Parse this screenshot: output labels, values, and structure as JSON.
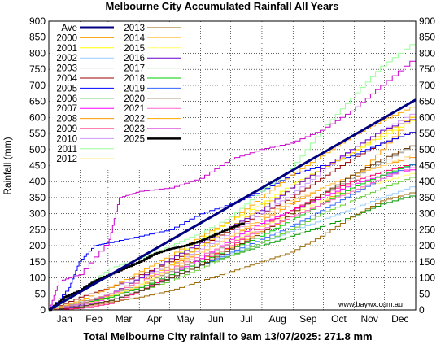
{
  "chart_data": {
    "type": "line",
    "title": "Melbourne City Accumulated Rainfall All Years",
    "xlabel": "Total Melbourne City rainfall to 9am 13/07/2025: 271.8 mm",
    "ylabel": "Rainfall (mm)",
    "source": "www.baywx.com.au",
    "ylim": [
      0,
      900
    ],
    "yticks": [
      "0",
      "50",
      "100",
      "150",
      "200",
      "250",
      "300",
      "350",
      "400",
      "450",
      "500",
      "550",
      "600",
      "650",
      "700",
      "750",
      "800",
      "850",
      "900"
    ],
    "xlim": [
      0,
      365
    ],
    "months": [
      "Jan",
      "Feb",
      "Mar",
      "Apr",
      "May",
      "Jun",
      "Jul",
      "Aug",
      "Sep",
      "Oct",
      "Nov",
      "Dec"
    ],
    "grid": true,
    "legend_position": "top-left",
    "legend_columns": [
      [
        "Ave",
        "2000",
        "2001",
        "2002",
        "2003",
        "2004",
        "2005",
        "2006",
        "2007",
        "2008",
        "2009",
        "2010",
        "2011",
        "2012"
      ],
      [
        "2013",
        "2014",
        "2015",
        "2016",
        "2017",
        "2018",
        "2019",
        "2020",
        "2021",
        "2022",
        "2023",
        "2025"
      ]
    ],
    "series": [
      {
        "name": "2000",
        "color": "#ff9900",
        "width": 1,
        "x": [
          0,
          30,
          60,
          90,
          120,
          150,
          180,
          210,
          240,
          270,
          300,
          330,
          365
        ],
        "y": [
          0,
          20,
          45,
          75,
          125,
          160,
          195,
          245,
          290,
          330,
          400,
          500,
          620
        ]
      },
      {
        "name": "2001",
        "color": "#ffff00",
        "width": 1,
        "x": [
          0,
          30,
          60,
          90,
          120,
          150,
          180,
          210,
          240,
          270,
          300,
          330,
          365
        ],
        "y": [
          0,
          15,
          50,
          100,
          160,
          220,
          280,
          330,
          390,
          440,
          490,
          540,
          600
        ]
      },
      {
        "name": "2002",
        "color": "#99ccff",
        "width": 1,
        "x": [
          0,
          30,
          60,
          90,
          120,
          150,
          180,
          210,
          240,
          270,
          300,
          330,
          365
        ],
        "y": [
          0,
          10,
          30,
          60,
          100,
          140,
          175,
          210,
          245,
          280,
          315,
          350,
          390
        ]
      },
      {
        "name": "2003",
        "color": "#999999",
        "width": 1,
        "x": [
          0,
          30,
          60,
          90,
          120,
          150,
          180,
          210,
          240,
          270,
          300,
          330,
          365
        ],
        "y": [
          0,
          25,
          50,
          80,
          120,
          160,
          210,
          260,
          310,
          360,
          410,
          460,
          520
        ]
      },
      {
        "name": "2004",
        "color": "#990000",
        "width": 1,
        "x": [
          0,
          30,
          60,
          90,
          120,
          150,
          180,
          210,
          240,
          270,
          300,
          330,
          365
        ],
        "y": [
          0,
          40,
          70,
          110,
          150,
          200,
          250,
          300,
          350,
          410,
          470,
          520,
          560
        ]
      },
      {
        "name": "2005",
        "color": "#0000ff",
        "width": 1,
        "x": [
          0,
          20,
          30,
          45,
          60,
          90,
          120,
          150,
          180,
          210,
          240,
          270,
          300,
          330,
          365
        ],
        "y": [
          0,
          70,
          150,
          200,
          210,
          230,
          250,
          300,
          330,
          370,
          420,
          450,
          480,
          520,
          560
        ]
      },
      {
        "name": "2006",
        "color": "#009900",
        "width": 1,
        "x": [
          0,
          30,
          60,
          90,
          120,
          150,
          180,
          210,
          240,
          270,
          300,
          330,
          365
        ],
        "y": [
          0,
          20,
          40,
          70,
          100,
          140,
          170,
          200,
          230,
          260,
          290,
          330,
          360
        ]
      },
      {
        "name": "2007",
        "color": "#ff00ff",
        "width": 1,
        "x": [
          0,
          30,
          60,
          90,
          120,
          150,
          180,
          210,
          240,
          270,
          300,
          330,
          365
        ],
        "y": [
          0,
          10,
          40,
          70,
          110,
          160,
          220,
          270,
          310,
          350,
          390,
          420,
          440
        ]
      },
      {
        "name": "2008",
        "color": "#ff9900",
        "width": 1,
        "x": [
          0,
          30,
          60,
          90,
          120,
          150,
          180,
          210,
          240,
          270,
          300,
          330,
          365
        ],
        "y": [
          0,
          20,
          50,
          90,
          140,
          180,
          230,
          280,
          330,
          380,
          420,
          450,
          480
        ]
      },
      {
        "name": "2009",
        "color": "#ff0066",
        "width": 1,
        "x": [
          0,
          30,
          60,
          90,
          120,
          150,
          180,
          210,
          240,
          270,
          300,
          330,
          365
        ],
        "y": [
          0,
          5,
          20,
          60,
          110,
          150,
          200,
          260,
          310,
          360,
          400,
          430,
          460
        ]
      },
      {
        "name": "2010",
        "color": "#cc99ff",
        "width": 1,
        "x": [
          0,
          30,
          60,
          90,
          120,
          150,
          180,
          210,
          240,
          270,
          300,
          330,
          365
        ],
        "y": [
          0,
          30,
          70,
          100,
          140,
          190,
          240,
          300,
          360,
          430,
          500,
          560,
          620
        ]
      },
      {
        "name": "2011",
        "color": "#99ff99",
        "width": 1,
        "x": [
          0,
          30,
          60,
          90,
          120,
          150,
          180,
          210,
          240,
          270,
          300,
          330,
          365
        ],
        "y": [
          0,
          60,
          130,
          160,
          200,
          240,
          290,
          370,
          440,
          560,
          660,
          760,
          840
        ]
      },
      {
        "name": "2012",
        "color": "#ffcc00",
        "width": 1,
        "x": [
          0,
          30,
          60,
          90,
          120,
          150,
          180,
          210,
          240,
          270,
          300,
          330,
          365
        ],
        "y": [
          0,
          20,
          50,
          90,
          140,
          200,
          260,
          320,
          380,
          440,
          490,
          550,
          610
        ]
      },
      {
        "name": "2013",
        "color": "#996600",
        "width": 1,
        "x": [
          0,
          30,
          60,
          90,
          120,
          150,
          180,
          210,
          240,
          270,
          300,
          330,
          365
        ],
        "y": [
          0,
          10,
          25,
          40,
          60,
          90,
          120,
          150,
          180,
          230,
          290,
          340,
          370
        ]
      },
      {
        "name": "2014",
        "color": "#ffcc66",
        "width": 1,
        "x": [
          0,
          30,
          60,
          90,
          120,
          150,
          180,
          210,
          240,
          270,
          300,
          330,
          365
        ],
        "y": [
          0,
          15,
          40,
          80,
          130,
          180,
          230,
          290,
          340,
          380,
          420,
          450,
          490
        ]
      },
      {
        "name": "2015",
        "color": "#ffff66",
        "width": 1,
        "x": [
          0,
          30,
          60,
          90,
          120,
          150,
          180,
          210,
          240,
          270,
          300,
          330,
          365
        ],
        "y": [
          0,
          20,
          40,
          80,
          130,
          170,
          210,
          260,
          300,
          340,
          370,
          400,
          430
        ]
      },
      {
        "name": "2016",
        "color": "#6600cc",
        "width": 1,
        "x": [
          0,
          30,
          60,
          90,
          120,
          150,
          180,
          210,
          240,
          270,
          300,
          330,
          365
        ],
        "y": [
          0,
          15,
          50,
          100,
          160,
          210,
          260,
          310,
          380,
          440,
          500,
          560,
          600
        ]
      },
      {
        "name": "2017",
        "color": "#66cc33",
        "width": 1,
        "x": [
          0,
          30,
          60,
          90,
          120,
          150,
          180,
          210,
          240,
          270,
          300,
          330,
          365
        ],
        "y": [
          0,
          10,
          30,
          60,
          90,
          130,
          170,
          210,
          250,
          300,
          340,
          380,
          420
        ]
      },
      {
        "name": "2018",
        "color": "#00cc00",
        "width": 1,
        "x": [
          0,
          30,
          60,
          90,
          120,
          150,
          180,
          210,
          240,
          270,
          300,
          330,
          365
        ],
        "y": [
          0,
          20,
          40,
          70,
          110,
          150,
          190,
          230,
          280,
          330,
          380,
          420,
          460
        ]
      },
      {
        "name": "2019",
        "color": "#3366ff",
        "width": 1,
        "x": [
          0,
          30,
          60,
          90,
          120,
          150,
          180,
          210,
          240,
          270,
          300,
          330,
          365
        ],
        "y": [
          0,
          10,
          30,
          60,
          100,
          140,
          180,
          220,
          260,
          310,
          360,
          410,
          460
        ]
      },
      {
        "name": "2020",
        "color": "#663300",
        "width": 1,
        "x": [
          0,
          30,
          60,
          90,
          120,
          150,
          180,
          210,
          240,
          270,
          300,
          330,
          365
        ],
        "y": [
          0,
          10,
          30,
          60,
          100,
          140,
          190,
          240,
          300,
          360,
          420,
          470,
          520
        ]
      },
      {
        "name": "2021",
        "color": "#ff66cc",
        "width": 1,
        "x": [
          0,
          30,
          60,
          90,
          120,
          150,
          180,
          210,
          240,
          270,
          300,
          330,
          365
        ],
        "y": [
          0,
          20,
          50,
          90,
          130,
          170,
          210,
          250,
          290,
          330,
          370,
          410,
          450
        ]
      },
      {
        "name": "2022",
        "color": "#ffaa00",
        "width": 1,
        "x": [
          0,
          30,
          60,
          90,
          120,
          150,
          180,
          210,
          240,
          270,
          300,
          330,
          365
        ],
        "y": [
          0,
          30,
          70,
          120,
          170,
          230,
          280,
          350,
          420,
          480,
          540,
          590,
          640
        ]
      },
      {
        "name": "2023",
        "color": "#cc00cc",
        "width": 1,
        "x": [
          0,
          10,
          30,
          60,
          70,
          90,
          120,
          150,
          180,
          210,
          240,
          270,
          300,
          330,
          365
        ],
        "y": [
          0,
          90,
          110,
          220,
          350,
          370,
          380,
          410,
          470,
          500,
          520,
          560,
          620,
          700,
          790
        ]
      },
      {
        "name": "2025",
        "color": "#000000",
        "width": 2.5,
        "x": [
          0,
          15,
          30,
          45,
          60,
          75,
          90,
          105,
          120,
          135,
          150,
          165,
          180,
          194
        ],
        "y": [
          0,
          40,
          60,
          90,
          110,
          130,
          150,
          175,
          190,
          200,
          215,
          235,
          255,
          272
        ]
      },
      {
        "name": "Ave",
        "color": "#000080",
        "width": 3,
        "x": [
          0,
          365
        ],
        "y": [
          0,
          655
        ]
      }
    ]
  }
}
